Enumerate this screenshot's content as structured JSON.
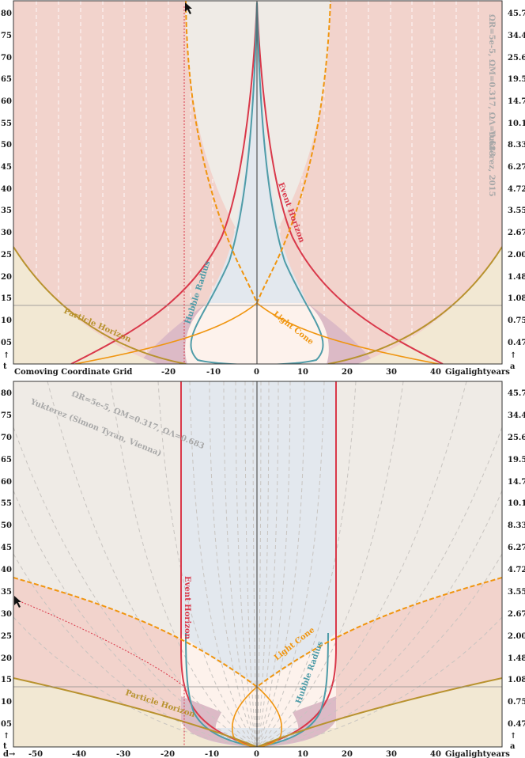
{
  "top_panel": {
    "params_watermark": "ΩR=5e-5, ΩM=0.317, ΩΛ=0.683",
    "author_watermark": "Yukterez, 2015",
    "x_title": "Comoving Coordinate Grid",
    "x_unit": "Gigalightyears",
    "t_axis_label": "t",
    "a_axis_label": "a",
    "arrow_glyph": "↑",
    "t_ticks": [
      "05",
      "10",
      "15",
      "20",
      "25",
      "30",
      "35",
      "40",
      "45",
      "50",
      "55",
      "60",
      "65",
      "70",
      "75",
      "80"
    ],
    "a_ticks": [
      "0.47",
      "0.75",
      "1.08",
      "1.48",
      "2.00",
      "2.67",
      "3.55",
      "4.72",
      "6.27",
      "8.33",
      "10.1",
      "14.7",
      "19.5",
      "25.6",
      "34.4",
      "45.7"
    ],
    "x_ticks": [
      "-20",
      "-10",
      "0",
      "10",
      "20",
      "30",
      "40"
    ],
    "labels": {
      "event_horizon": "Event Horizon",
      "hubble_radius": "Hubble Radius",
      "light_cone": "Light Cone",
      "particle_horizon": "Particle Horizon"
    }
  },
  "bottom_panel": {
    "params_watermark": "ΩR=5e-5, ΩM=0.317, ΩΛ=0.683",
    "author_watermark": "Yukterez (Simon Tyran, Vienna)",
    "x_unit": "Gigalightyears",
    "d_axis_label": "d→",
    "t_axis_label": "t",
    "a_axis_label": "a",
    "arrow_glyph": "↑",
    "t_ticks": [
      "05",
      "10",
      "15",
      "20",
      "25",
      "30",
      "35",
      "40",
      "45",
      "50",
      "55",
      "60",
      "65",
      "70",
      "75",
      "80"
    ],
    "a_ticks": [
      "0.47",
      "0.75",
      "1.08",
      "1.48",
      "2.00",
      "2.67",
      "3.55",
      "4.72",
      "6.27",
      "8.33",
      "10.1",
      "14.7",
      "19.5",
      "25.6",
      "34.4",
      "45.7"
    ],
    "x_ticks": [
      "-50",
      "-40",
      "-30",
      "-20",
      "-10",
      "0",
      "10",
      "20",
      "30",
      "40"
    ],
    "labels": {
      "event_horizon": "Event Horizon",
      "hubble_radius": "Hubble Radius",
      "light_cone": "Light Cone",
      "particle_horizon": "Particle Horizon"
    }
  },
  "colors": {
    "event_horizon": "#d9384a",
    "hubble_radius": "#4f9ca8",
    "light_cone": "#f0950f",
    "particle_horizon": "#b8922e",
    "pink_fill": "#f2d3cc",
    "grey_fill": "#efebe6",
    "blue_fill": "#e3e8ee",
    "cream_fill": "#f2e8d3",
    "purple_fill": "#dcbac6",
    "white_fill": "#fdf2ec"
  }
}
